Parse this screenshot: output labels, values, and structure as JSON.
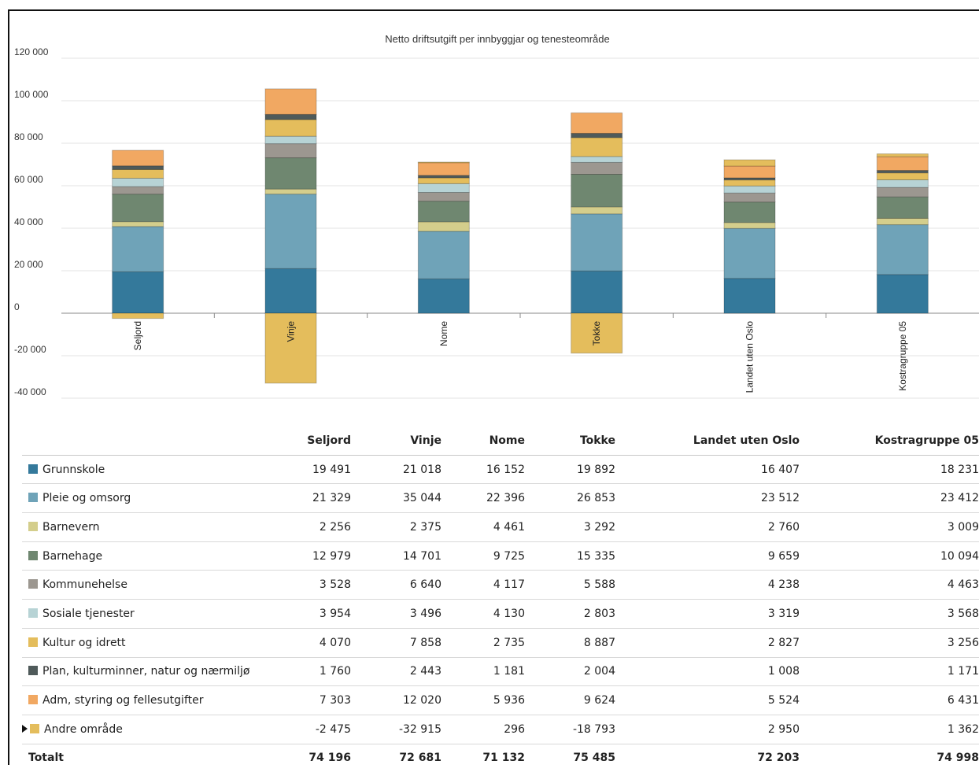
{
  "chart_data": {
    "type": "bar",
    "stacked": true,
    "title": "Netto driftsutgift per innbyggjar og tenesteområde",
    "xlabel": "",
    "ylabel": "",
    "ylim": [
      -40000,
      120000
    ],
    "yticks": [
      "120 000",
      "100 000",
      "80 000",
      "60 000",
      "40 000",
      "20 000",
      "0",
      "-20 000",
      "-40 000"
    ],
    "categories": [
      "Seljord",
      "Vinje",
      "Nome",
      "Tokke",
      "Landet uten Oslo",
      "Kostragruppe 05"
    ],
    "grid": true,
    "series": [
      {
        "name": "Grunnskole",
        "color": "#34799b",
        "values": [
          19491,
          21018,
          16152,
          19892,
          16407,
          18231
        ],
        "labels": [
          "19 491",
          "21 018",
          "16 152",
          "19 892",
          "16 407",
          "18 231"
        ]
      },
      {
        "name": "Pleie og omsorg",
        "color": "#6fa3b8",
        "values": [
          21329,
          35044,
          22396,
          26853,
          23512,
          23412
        ],
        "labels": [
          "21 329",
          "35 044",
          "22 396",
          "26 853",
          "23 512",
          "23 412"
        ]
      },
      {
        "name": "Barnevern",
        "color": "#d4ce8c",
        "values": [
          2256,
          2375,
          4461,
          3292,
          2760,
          3009
        ],
        "labels": [
          "2 256",
          "2 375",
          "4 461",
          "3 292",
          "2 760",
          "3 009"
        ]
      },
      {
        "name": "Barnehage",
        "color": "#6f8770",
        "values": [
          12979,
          14701,
          9725,
          15335,
          9659,
          10094
        ],
        "labels": [
          "12 979",
          "14 701",
          "9 725",
          "15 335",
          "9 659",
          "10 094"
        ]
      },
      {
        "name": "Kommunehelse",
        "color": "#9c9790",
        "values": [
          3528,
          6640,
          4117,
          5588,
          4238,
          4463
        ],
        "labels": [
          "3 528",
          "6 640",
          "4 117",
          "5 588",
          "4 238",
          "4 463"
        ]
      },
      {
        "name": "Sosiale tjenester",
        "color": "#b7d3d5",
        "values": [
          3954,
          3496,
          4130,
          2803,
          3319,
          3568
        ],
        "labels": [
          "3 954",
          "3 496",
          "4 130",
          "2 803",
          "3 319",
          "3 568"
        ]
      },
      {
        "name": "Kultur og idrett",
        "color": "#e4bd5c",
        "values": [
          4070,
          7858,
          2735,
          8887,
          2827,
          3256
        ],
        "labels": [
          "4 070",
          "7 858",
          "2 735",
          "8 887",
          "2 827",
          "3 256"
        ]
      },
      {
        "name": "Plan, kulturminner, natur og nærmiljø",
        "color": "#4f5a5a",
        "values": [
          1760,
          2443,
          1181,
          2004,
          1008,
          1171
        ],
        "labels": [
          "1 760",
          "2 443",
          "1 181",
          "2 004",
          "1 008",
          "1 171"
        ]
      },
      {
        "name": "Adm, styring og fellesutgifter",
        "color": "#f1a862",
        "values": [
          7303,
          12020,
          5936,
          9624,
          5524,
          6431
        ],
        "labels": [
          "7 303",
          "12 020",
          "5 936",
          "9 624",
          "5 524",
          "6 431"
        ]
      },
      {
        "name": "Andre område",
        "color": "#e4bd5c",
        "values": [
          -2475,
          -32915,
          296,
          -18793,
          2950,
          1362
        ],
        "labels": [
          "-2 475",
          "-32 915",
          "296",
          "-18 793",
          "2 950",
          "1 362"
        ],
        "expandable": true
      }
    ],
    "totals": {
      "name": "Totalt",
      "labels": [
        "74 196",
        "72 681",
        "71 132",
        "75 485",
        "72 203",
        "74 998"
      ]
    }
  }
}
